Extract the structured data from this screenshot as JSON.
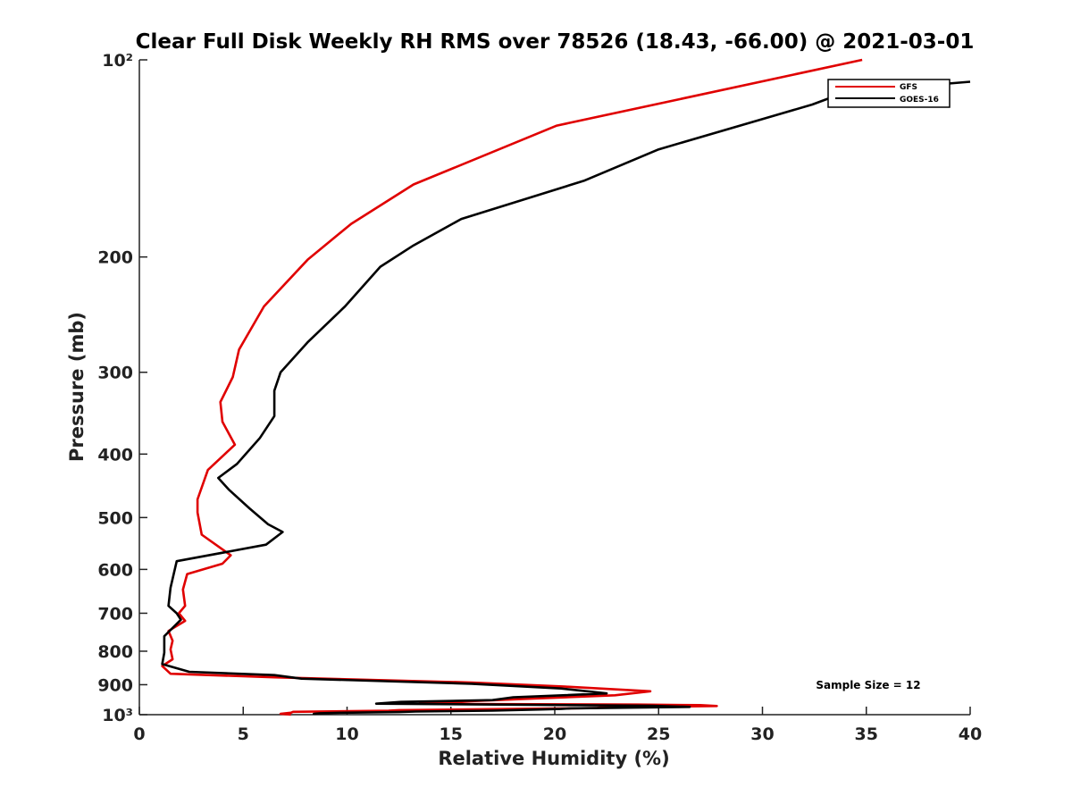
{
  "chart_data": {
    "type": "line",
    "title": "Clear Full Disk Weekly RH RMS over 78526 (18.43, -66.00) @ 2021-03-01",
    "xlabel": "Relative Humidity (%)",
    "ylabel": "Pressure (mb)",
    "xlim": [
      0,
      40
    ],
    "ylim": [
      100,
      1000
    ],
    "yscale": "log",
    "y_reversed": true,
    "x_ticks": [
      0,
      5,
      10,
      15,
      20,
      25,
      30,
      35,
      40
    ],
    "x_tick_labels": [
      "0",
      "5",
      "10",
      "15",
      "20",
      "25",
      "30",
      "35",
      "40"
    ],
    "y_ticks": [
      100,
      200,
      300,
      400,
      500,
      600,
      700,
      800,
      900,
      1000
    ],
    "y_tick_labels": [
      "10²",
      "200",
      "300",
      "400",
      "500",
      "600",
      "700",
      "800",
      "900",
      "10³"
    ],
    "grid": false,
    "legend_position": "top-right",
    "annotation": "Sample Size = 12",
    "series": [
      {
        "name": "GFS",
        "color": "#e00000",
        "points": [
          [
            34.8,
            100
          ],
          [
            20.1,
            126
          ],
          [
            13.2,
            155
          ],
          [
            10.2,
            178
          ],
          [
            8.1,
            202
          ],
          [
            6.0,
            238
          ],
          [
            4.8,
            277
          ],
          [
            4.5,
            305
          ],
          [
            3.9,
            333
          ],
          [
            4.0,
            357
          ],
          [
            4.6,
            387
          ],
          [
            3.3,
            423
          ],
          [
            2.8,
            469
          ],
          [
            2.8,
            491
          ],
          [
            3.0,
            531
          ],
          [
            4.4,
            571
          ],
          [
            4.0,
            588
          ],
          [
            2.3,
            610
          ],
          [
            2.1,
            644
          ],
          [
            2.2,
            682
          ],
          [
            1.9,
            700
          ],
          [
            2.2,
            719
          ],
          [
            1.4,
            745
          ],
          [
            1.6,
            771
          ],
          [
            1.5,
            795
          ],
          [
            1.6,
            823
          ],
          [
            1.1,
            843
          ],
          [
            1.5,
            866
          ],
          [
            6.5,
            877
          ],
          [
            16.0,
            893
          ],
          [
            20.5,
            906
          ],
          [
            24.6,
            921
          ],
          [
            22.9,
            934
          ],
          [
            19.0,
            945
          ],
          [
            15.5,
            955
          ],
          [
            13.5,
            961
          ],
          [
            16.0,
            963
          ],
          [
            24.0,
            965
          ],
          [
            27.0,
            967
          ],
          [
            27.8,
            970
          ],
          [
            22.2,
            975
          ],
          [
            22.0,
            977
          ],
          [
            18.0,
            980
          ],
          [
            12.5,
            984
          ],
          [
            12.0,
            986
          ],
          [
            7.4,
            990
          ],
          [
            7.3,
            993
          ],
          [
            6.8,
            997
          ],
          [
            7.3,
            1000
          ]
        ]
      },
      {
        "name": "GOES-16",
        "color": "#000000",
        "points": [
          [
            40.0,
            108
          ],
          [
            34.0,
            112
          ],
          [
            32.4,
            117
          ],
          [
            25.0,
            137
          ],
          [
            21.4,
            153
          ],
          [
            15.5,
            175
          ],
          [
            13.2,
            192
          ],
          [
            11.6,
            207
          ],
          [
            9.9,
            238
          ],
          [
            8.1,
            270
          ],
          [
            6.8,
            300
          ],
          [
            6.5,
            320
          ],
          [
            6.5,
            350
          ],
          [
            5.8,
            378
          ],
          [
            4.7,
            414
          ],
          [
            3.8,
            435
          ],
          [
            4.3,
            453
          ],
          [
            5.3,
            484
          ],
          [
            6.2,
            512
          ],
          [
            6.9,
            526
          ],
          [
            6.1,
            550
          ],
          [
            1.8,
            583
          ],
          [
            1.5,
            640
          ],
          [
            1.4,
            682
          ],
          [
            1.8,
            700
          ],
          [
            2.0,
            716
          ],
          [
            1.2,
            759
          ],
          [
            1.2,
            804
          ],
          [
            1.1,
            837
          ],
          [
            2.4,
            860
          ],
          [
            6.5,
            870
          ],
          [
            7.8,
            881
          ],
          [
            16.0,
            897
          ],
          [
            20.3,
            912
          ],
          [
            22.5,
            928
          ],
          [
            18.0,
            941
          ],
          [
            17.0,
            950
          ],
          [
            12.6,
            956
          ],
          [
            11.4,
            962
          ],
          [
            24.7,
            969
          ],
          [
            26.5,
            973
          ],
          [
            20.8,
            978
          ],
          [
            20.3,
            980
          ],
          [
            19.3,
            982
          ],
          [
            17.0,
            986
          ],
          [
            13.3,
            989
          ],
          [
            12.5,
            991
          ],
          [
            9.8,
            993
          ],
          [
            8.7,
            995
          ],
          [
            8.4,
            997
          ],
          [
            8.4,
            1000
          ]
        ]
      }
    ]
  }
}
